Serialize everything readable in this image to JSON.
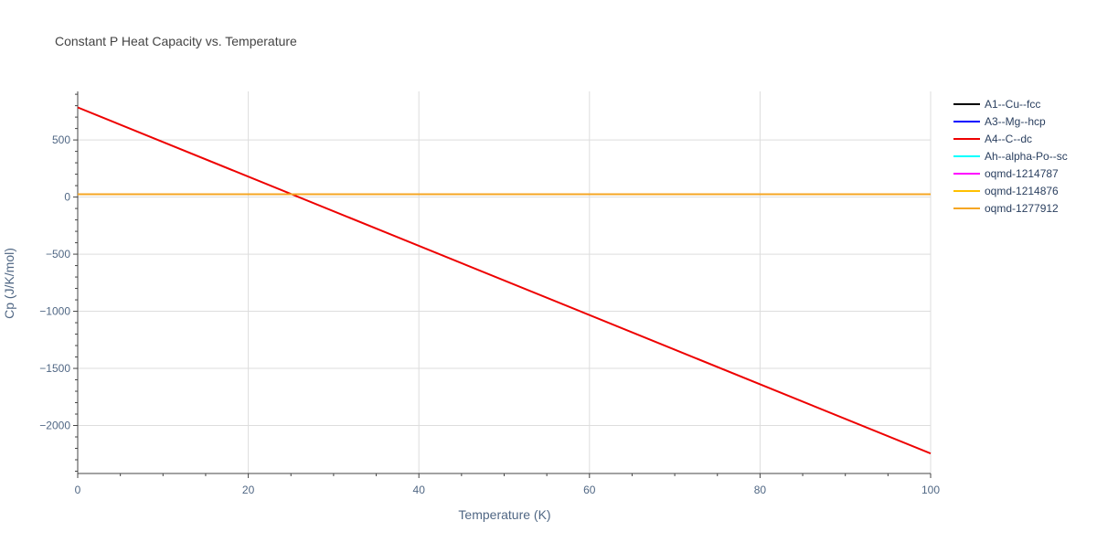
{
  "chart_data": {
    "type": "line",
    "title": "Constant P Heat Capacity vs. Temperature",
    "xlabel": "Temperature (K)",
    "ylabel": "Cp (J/K/mol)",
    "xlim": [
      0,
      100
    ],
    "ylim": [
      -2420,
      925
    ],
    "x_ticks": [
      0,
      20,
      40,
      60,
      80,
      100
    ],
    "y_ticks": [
      500,
      0,
      -500,
      -1000,
      -1500,
      -2000
    ],
    "y_tick_labels": [
      "500",
      "0",
      "−500",
      "−1000",
      "−1500",
      "−2000"
    ],
    "grid": true,
    "legend_position": "right",
    "series": [
      {
        "name": "A1--Cu--fcc",
        "color": "#000000",
        "x": [
          0,
          100
        ],
        "y": [
          25,
          25
        ]
      },
      {
        "name": "A3--Mg--hcp",
        "color": "#0000ff",
        "x": [
          0,
          100
        ],
        "y": [
          25,
          25
        ]
      },
      {
        "name": "A4--C--dc",
        "color": "#ee0000",
        "x": [
          0,
          100
        ],
        "y": [
          785,
          -2245
        ]
      },
      {
        "name": "Ah--alpha-Po--sc",
        "color": "#00ffff",
        "x": [
          0,
          100
        ],
        "y": [
          25,
          25
        ]
      },
      {
        "name": "oqmd-1214787",
        "color": "#ff00ff",
        "x": [
          0,
          100
        ],
        "y": [
          25,
          25
        ]
      },
      {
        "name": "oqmd-1214876",
        "color": "#ffc000",
        "x": [
          0,
          100
        ],
        "y": [
          25,
          25
        ]
      },
      {
        "name": "oqmd-1277912",
        "color": "#f5a623",
        "x": [
          0,
          100
        ],
        "y": [
          25,
          25
        ]
      }
    ]
  }
}
